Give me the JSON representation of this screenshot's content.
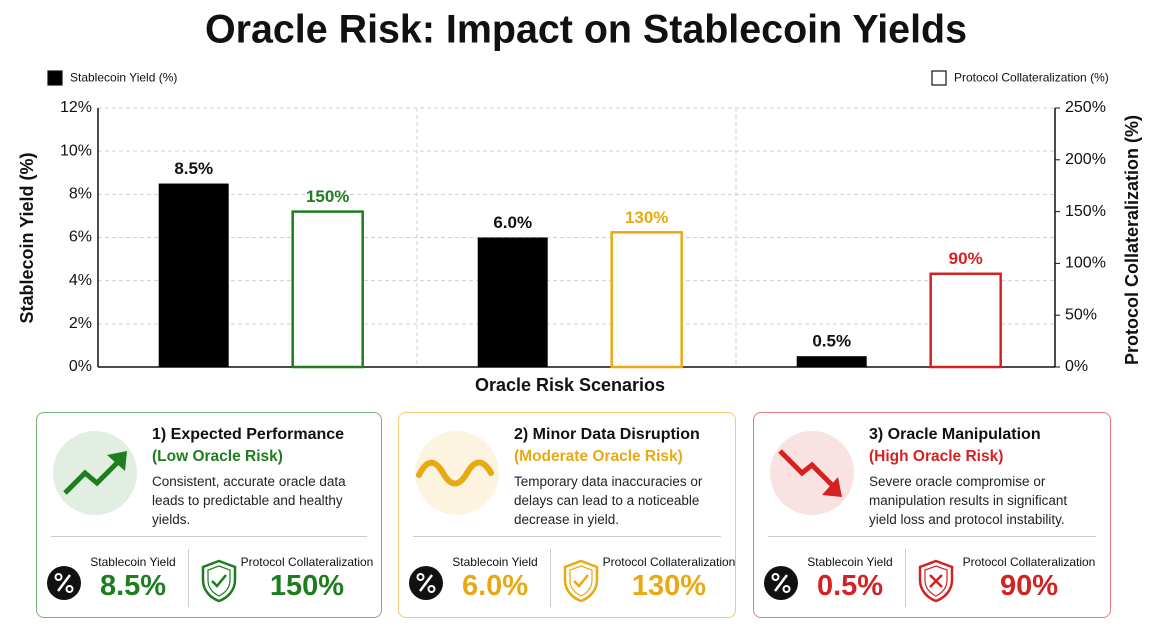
{
  "chart_data": {
    "type": "bar",
    "title": "Oracle Risk: Impact on Stablecoin Yields",
    "x_label": "Oracle Risk Scenarios",
    "y_label": "Stablecoin Yield (%)",
    "y2_label": "Protocol Collateralization (%)",
    "categories": [
      null,
      null,
      null
    ],
    "series": [
      {
        "name": "Stablecoin Yield (%)",
        "color": "#000000",
        "values": [
          8.5,
          6.0,
          0.5
        ],
        "value_labels": [
          "8.5%",
          "6.0%",
          "0.5%"
        ]
      },
      {
        "name": "Protocol Collateralization (%)",
        "axis": "y2",
        "color": "#ffffff",
        "colors": [
          "#1e7d1e",
          "#e8a912",
          "#d42222"
        ],
        "values": [
          150,
          130,
          90
        ],
        "value_labels": [
          "150%",
          "130%",
          "90%"
        ]
      }
    ],
    "ylim": [
      0,
      12
    ],
    "yticks": [
      {
        "value": 0,
        "label": "0%"
      },
      {
        "value": 2,
        "label": "2%"
      },
      {
        "value": 4,
        "label": "4%"
      },
      {
        "value": 6,
        "label": "6%"
      },
      {
        "value": 8,
        "label": "8%"
      },
      {
        "value": 10,
        "label": "10%"
      },
      {
        "value": 12,
        "label": "12%"
      }
    ],
    "y2lim": [
      0,
      250
    ],
    "y2ticks": [
      {
        "value": 0,
        "label": "0%"
      },
      {
        "value": 50,
        "label": "50%"
      },
      {
        "value": 100,
        "label": "100%"
      },
      {
        "value": 150,
        "label": "150%"
      },
      {
        "value": 200,
        "label": "200%"
      },
      {
        "value": 250,
        "label": "250%"
      }
    ],
    "grid": true,
    "legend": "top"
  },
  "cards": [
    {
      "title": "1) Expected Performance",
      "subtitle": "(Low Oracle Risk)",
      "color": "#1e7d1e",
      "description": "Consistent, accurate oracle data leads to predictable and healthy yields.",
      "metrics": [
        {
          "label": "Stablecoin Yield",
          "value": "8.5%"
        },
        {
          "label": "Protocol Collateralization",
          "value": "150%"
        }
      ]
    },
    {
      "title": "2) Minor Data Disruption",
      "subtitle": "(Moderate Oracle Risk)",
      "color": "#e8a912",
      "description": "Temporary data inaccuracies or delays can lead to a noticeable decrease in yield.",
      "metrics": [
        {
          "label": "Stablecoin Yield",
          "value": "6.0%"
        },
        {
          "label": "Protocol Collateralization",
          "value": "130%"
        }
      ]
    },
    {
      "title": "3) Oracle Manipulation",
      "subtitle": "(High Oracle Risk)",
      "color": "#d42222",
      "description": "Severe oracle compromise or manipulation results in significant yield loss and protocol instability.",
      "metrics": [
        {
          "label": "Stablecoin Yield",
          "value": "0.5%"
        },
        {
          "label": "Protocol Collateralization",
          "value": "90%"
        }
      ]
    }
  ]
}
